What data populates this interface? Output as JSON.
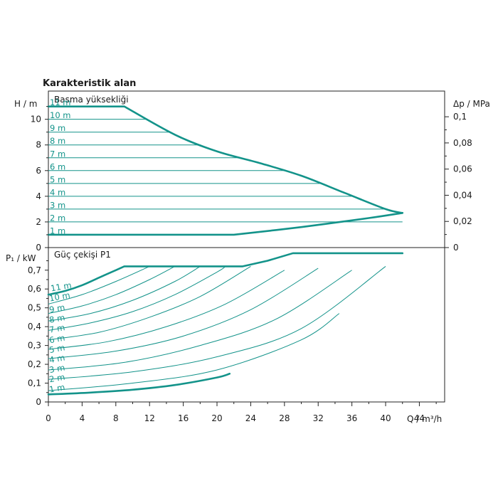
{
  "chart_data": [
    {
      "type": "line",
      "panel": "head",
      "page_title": "Karakteristik alan",
      "section_label": "Basma yüksekliği",
      "ylabel_left": "H / m",
      "ylabel_right": "Δp / MPa",
      "xlim": [
        0,
        47
      ],
      "ylim": [
        0,
        12.2
      ],
      "yticks": [
        0,
        2,
        4,
        6,
        8,
        10
      ],
      "yticks_right": [
        "0",
        "0,02",
        "0,04",
        "0,06",
        "0,08",
        "0,1"
      ],
      "curve_labels": [
        "11 m",
        "10 m",
        "9 m",
        "8 m",
        "7 m",
        "6 m",
        "5 m",
        "4 m",
        "3 m",
        "2 m",
        "1 m"
      ],
      "head_levels": [
        11,
        10,
        9,
        8,
        7,
        6,
        5,
        4,
        3,
        2,
        1
      ],
      "envelope": {
        "x": [
          0,
          9,
          15,
          20,
          25,
          30,
          35,
          40,
          42,
          38,
          30,
          22,
          0
        ],
        "y": [
          11,
          11,
          8.8,
          7.5,
          6.6,
          5.6,
          4.3,
          3.0,
          2.7,
          2.3,
          1.6,
          1.0,
          1.0
        ]
      }
    },
    {
      "type": "line",
      "panel": "power",
      "section_label": "Güç çekişi P1",
      "ylabel": "P₁ / kW",
      "xlabel": "Q / m³/h",
      "xlim": [
        0,
        47
      ],
      "ylim": [
        0,
        0.82
      ],
      "xticks": [
        0,
        4,
        8,
        12,
        16,
        20,
        24,
        28,
        32,
        36,
        40,
        44
      ],
      "yticks": [
        "0",
        "0,1",
        "0,2",
        "0,3",
        "0,4",
        "0,5",
        "0,6",
        "0,7"
      ],
      "curve_labels": [
        "11 m",
        "10 m",
        "9 m",
        "8 m",
        "7 m",
        "6 m",
        "5 m",
        "4 m",
        "3 m",
        "2 m",
        "1 m"
      ],
      "series": [
        {
          "name": "11 m",
          "x": [
            0,
            2,
            4,
            6,
            8,
            9
          ],
          "y": [
            0.57,
            0.59,
            0.62,
            0.66,
            0.7,
            0.72
          ]
        },
        {
          "name": "10 m",
          "x": [
            0,
            4,
            8,
            12
          ],
          "y": [
            0.52,
            0.57,
            0.64,
            0.72
          ]
        },
        {
          "name": "9 m",
          "x": [
            0,
            4,
            8,
            12,
            15
          ],
          "y": [
            0.47,
            0.51,
            0.57,
            0.65,
            0.72
          ]
        },
        {
          "name": "8 m",
          "x": [
            0,
            5,
            10,
            15,
            18
          ],
          "y": [
            0.43,
            0.47,
            0.54,
            0.64,
            0.72
          ]
        },
        {
          "name": "7 m",
          "x": [
            0,
            5,
            10,
            15,
            20,
            21
          ],
          "y": [
            0.38,
            0.42,
            0.48,
            0.57,
            0.69,
            0.72
          ]
        },
        {
          "name": "6 m",
          "x": [
            0,
            6,
            12,
            18,
            24
          ],
          "y": [
            0.33,
            0.37,
            0.45,
            0.56,
            0.72
          ]
        },
        {
          "name": "5 m",
          "x": [
            0,
            7,
            14,
            21,
            28
          ],
          "y": [
            0.28,
            0.32,
            0.4,
            0.52,
            0.7
          ]
        },
        {
          "name": "4 m",
          "x": [
            0,
            8,
            16,
            24,
            32
          ],
          "y": [
            0.23,
            0.27,
            0.35,
            0.49,
            0.71
          ]
        },
        {
          "name": "3 m",
          "x": [
            0,
            9,
            18,
            27,
            36
          ],
          "y": [
            0.17,
            0.21,
            0.3,
            0.44,
            0.7
          ]
        },
        {
          "name": "2 m",
          "x": [
            0,
            10,
            20,
            30,
            40
          ],
          "y": [
            0.12,
            0.16,
            0.24,
            0.39,
            0.72
          ]
        },
        {
          "name": "1 m",
          "x": [
            0,
            10,
            20,
            30,
            34.5
          ],
          "y": [
            0.06,
            0.1,
            0.17,
            0.33,
            0.47
          ]
        }
      ],
      "envelope_upper": {
        "x": [
          9,
          12,
          15,
          18,
          21,
          23,
          26,
          29,
          30,
          42
        ],
        "y": [
          0.72,
          0.72,
          0.72,
          0.72,
          0.72,
          0.72,
          0.75,
          0.79,
          0.79,
          0.79
        ]
      },
      "envelope_lower": {
        "x": [
          0,
          5,
          10,
          15,
          20,
          21.5
        ],
        "y": [
          0.04,
          0.05,
          0.065,
          0.09,
          0.13,
          0.15
        ]
      }
    }
  ]
}
